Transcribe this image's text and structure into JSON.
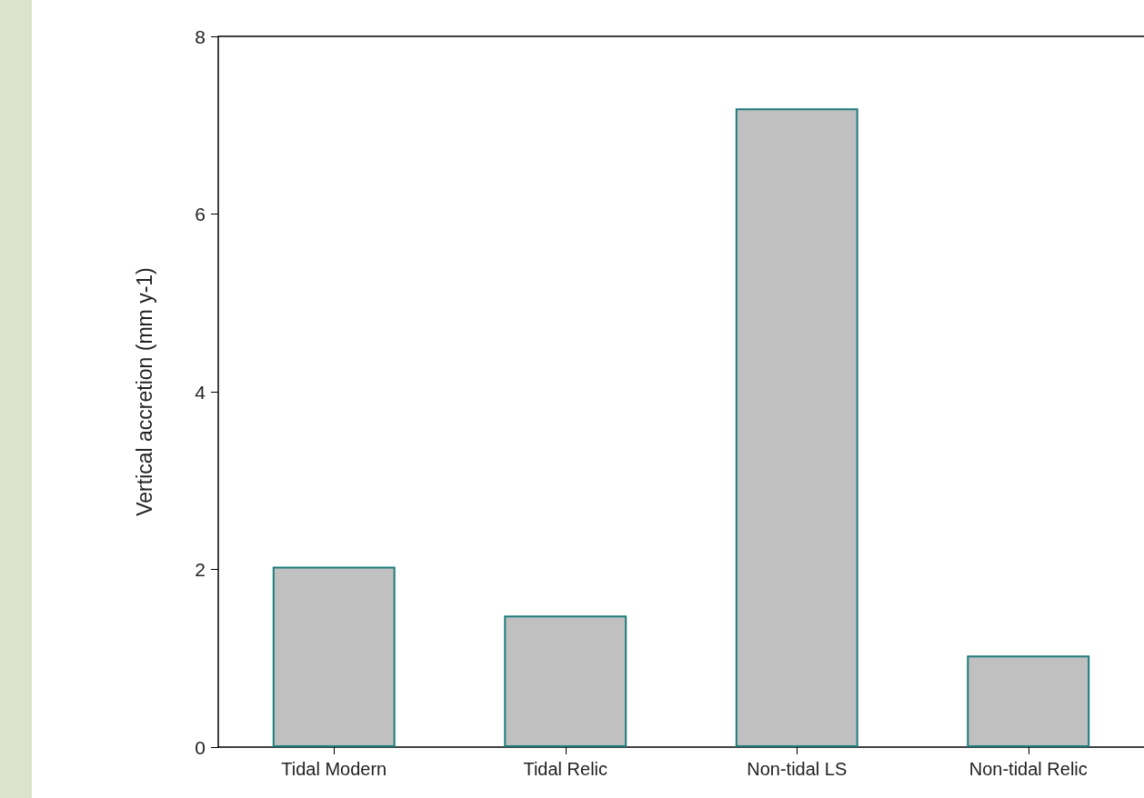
{
  "chart_data": {
    "type": "bar",
    "ylabel": "Vertical accretion (mm y-1)",
    "categories": [
      "Tidal Modern",
      "Tidal Relic",
      "Non-tidal LS",
      "Non-tidal Relic"
    ],
    "values": [
      2.03,
      1.48,
      7.19,
      1.03
    ],
    "color": "#c0c0c0",
    "ylim": [
      0,
      8
    ],
    "yticks": [
      0,
      2,
      4,
      6,
      8
    ]
  }
}
